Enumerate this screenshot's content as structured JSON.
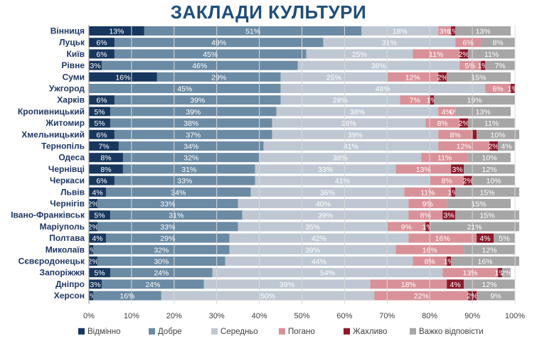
{
  "title": "ЗАКЛАДИ КУЛЬТУРИ",
  "chart_data": {
    "type": "bar",
    "orientation": "horizontal",
    "stacked": "100%",
    "title": "ЗАКЛАДИ КУЛЬТУРИ",
    "categories": [
      "Вінниця",
      "Луцьк",
      "Київ",
      "Рівне",
      "Суми",
      "Ужгород",
      "Харків",
      "Кропивницький",
      "Житомир",
      "Хмельницький",
      "Тернопіль",
      "Одеса",
      "Чернівці",
      "Черкаси",
      "Львів",
      "Чернігів",
      "Івано-Франківськ",
      "Маріуполь",
      "Полтава",
      "Миколаїв",
      "Сєвєродонецьк",
      "Запоріжжя",
      "Дніпро",
      "Херсон"
    ],
    "series": [
      {
        "name": "Відмінно",
        "color": "#17375e",
        "values": [
          13,
          6,
          6,
          3,
          16,
          0,
          6,
          5,
          5,
          6,
          7,
          8,
          8,
          6,
          4,
          2,
          5,
          2,
          4,
          1,
          2,
          5,
          3,
          1
        ]
      },
      {
        "name": "Добре",
        "color": "#6b8aa3",
        "values": [
          51,
          49,
          45,
          46,
          29,
          45,
          39,
          39,
          38,
          37,
          34,
          32,
          31,
          33,
          34,
          33,
          31,
          33,
          29,
          32,
          30,
          24,
          24,
          16
        ]
      },
      {
        "name": "Середньо",
        "color": "#bfc8d2",
        "values": [
          18,
          31,
          25,
          38,
          25,
          48,
          28,
          38,
          36,
          39,
          41,
          38,
          33,
          41,
          36,
          40,
          39,
          35,
          42,
          39,
          44,
          54,
          39,
          50
        ]
      },
      {
        "name": "Погано",
        "color": "#d99199",
        "values": [
          3,
          6,
          11,
          5,
          12,
          6,
          7,
          4,
          8,
          8,
          12,
          11,
          13,
          8,
          11,
          9,
          8,
          9,
          16,
          16,
          8,
          13,
          18,
          22
        ]
      },
      {
        "name": "Жахливо",
        "color": "#8b1a2b",
        "values": [
          1,
          0,
          2,
          1,
          2,
          1,
          1,
          0,
          2,
          1,
          2,
          0,
          3,
          2,
          1,
          0,
          3,
          1,
          4,
          0,
          1,
          1,
          4,
          2
        ]
      },
      {
        "name": "Важко відповісти",
        "color": "#a6a6a6",
        "values": [
          13,
          8,
          11,
          7,
          15,
          0,
          19,
          13,
          11,
          10,
          4,
          10,
          12,
          10,
          15,
          15,
          15,
          21,
          5,
          12,
          16,
          2,
          12,
          9
        ]
      }
    ],
    "data_labels": [
      [
        "13%",
        "51%",
        "18%",
        "3%",
        "1%",
        "13%"
      ],
      [
        "6%",
        "49%",
        "31%",
        "6%",
        "",
        "8%"
      ],
      [
        "6%",
        "45%",
        "25%",
        "11%",
        "2%",
        "11%"
      ],
      [
        "3%",
        "46%",
        "38%",
        "5%",
        "1%",
        "7%"
      ],
      [
        "16%",
        "29%",
        "25%",
        "12%",
        "2%",
        "15%"
      ],
      [
        "",
        "45%",
        "48%",
        "6%",
        "1%",
        ""
      ],
      [
        "6%",
        "39%",
        "28%",
        "7%",
        "1%",
        "19%"
      ],
      [
        "5%",
        "39%",
        "38%",
        "4%",
        "0%",
        "13%"
      ],
      [
        "5%",
        "38%",
        "36%",
        "8%",
        "2%",
        "11%"
      ],
      [
        "6%",
        "37%",
        "39%",
        "8%",
        "",
        "10%"
      ],
      [
        "7%",
        "34%",
        "41%",
        "12%",
        "2%",
        "4%"
      ],
      [
        "8%",
        "32%",
        "38%",
        "11%",
        "",
        "10%"
      ],
      [
        "8%",
        "31%",
        "33%",
        "13%",
        "3%",
        "12%"
      ],
      [
        "6%",
        "33%",
        "41%",
        "8%",
        "2%",
        "10%"
      ],
      [
        "4%",
        "34%",
        "36%",
        "11%",
        "1%",
        "15%"
      ],
      [
        "2%",
        "33%",
        "40%",
        "9%",
        "",
        "15%"
      ],
      [
        "5%",
        "31%",
        "39%",
        "8%",
        "3%",
        "15%"
      ],
      [
        "2%",
        "33%",
        "35%",
        "9%",
        "1%",
        "21%"
      ],
      [
        "4%",
        "29%",
        "42%",
        "16%",
        "4%",
        "5%"
      ],
      [
        "1%",
        "32%",
        "39%",
        "16%",
        "",
        "12%"
      ],
      [
        "2%",
        "30%",
        "44%",
        "8%",
        "1%",
        "16%"
      ],
      [
        "5%",
        "24%",
        "54%",
        "13%",
        "1%",
        "2%"
      ],
      [
        "3%",
        "24%",
        "39%",
        "18%",
        "4%",
        "12%"
      ],
      [
        "1%",
        "16%",
        "50%",
        "22%",
        "2%",
        "9%"
      ]
    ],
    "x_ticks": [
      "0%",
      "10%",
      "20%",
      "30%",
      "40%",
      "50%",
      "60%",
      "70%",
      "80%",
      "90%",
      "100%"
    ],
    "xlim": [
      0,
      100
    ],
    "legend": {
      "placement": "bottom"
    }
  }
}
